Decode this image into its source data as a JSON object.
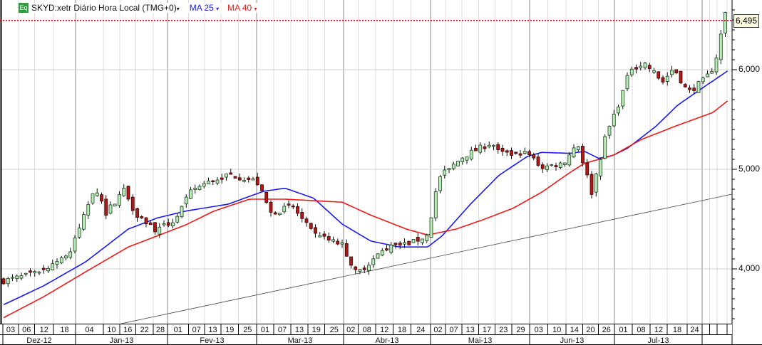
{
  "legend": {
    "badge": "Eq",
    "symbol": "SKYD:xetr Diário Hora Local (TMG+0)",
    "ma25": "MA 25",
    "ma40": "MA 40",
    "dropdown_glyph": "▾"
  },
  "last_price_label": "6,495",
  "colors": {
    "up_fill": "#b8ecb8",
    "down_fill": "#b01818",
    "ma25": "#1a1aee",
    "ma40": "#ee1a1a",
    "last_line": "#cc0000",
    "trend": "#444444"
  },
  "chart_data": {
    "type": "candlestick",
    "title": "SKYD:xetr Diário Hora Local (TMG+0)",
    "y_ticks": [
      {
        "value": 4000,
        "label": "4,000"
      },
      {
        "value": 5000,
        "label": "5,000"
      },
      {
        "value": 6000,
        "label": "6,000"
      }
    ],
    "ylim": [
      3450,
      6680
    ],
    "last_price": 6495,
    "candle_count": 163,
    "close_keypoints": [
      [
        0,
        3880
      ],
      [
        7,
        3950
      ],
      [
        15,
        4165
      ],
      [
        20.5,
        4840
      ],
      [
        23,
        4560
      ],
      [
        27,
        4800
      ],
      [
        29.6,
        4560
      ],
      [
        34.4,
        4380
      ],
      [
        38.4,
        4490
      ],
      [
        42.4,
        4800
      ],
      [
        50.4,
        4950
      ],
      [
        56.8,
        4880
      ],
      [
        60,
        4560
      ],
      [
        64.8,
        4630
      ],
      [
        69.6,
        4340
      ],
      [
        76,
        4240
      ],
      [
        79.2,
        3950
      ],
      [
        85.6,
        4200
      ],
      [
        92,
        4270
      ],
      [
        95.2,
        4340
      ],
      [
        97.6,
        4910
      ],
      [
        103.2,
        5130
      ],
      [
        109.6,
        5270
      ],
      [
        111.2,
        5160
      ],
      [
        117.6,
        5160
      ],
      [
        120.8,
        5020
      ],
      [
        125.6,
        5060
      ],
      [
        128.8,
        5270
      ],
      [
        132,
        4770
      ],
      [
        135.2,
        5340
      ],
      [
        138.4,
        5700
      ],
      [
        140.8,
        6020
      ],
      [
        144,
        6060
      ],
      [
        148,
        5880
      ],
      [
        150.4,
        6020
      ],
      [
        153.6,
        5770
      ],
      [
        157.6,
        5910
      ],
      [
        159.2,
        6020
      ],
      [
        160.5,
        6200
      ],
      [
        161.8,
        6590
      ],
      [
        162.6,
        6500
      ]
    ],
    "ma25_keypoints": [
      [
        0,
        3640
      ],
      [
        9,
        3830
      ],
      [
        18.4,
        4070
      ],
      [
        28,
        4400
      ],
      [
        34.4,
        4510
      ],
      [
        40.8,
        4580
      ],
      [
        50.4,
        4650
      ],
      [
        58.4,
        4780
      ],
      [
        63.2,
        4810
      ],
      [
        69.6,
        4710
      ],
      [
        76,
        4450
      ],
      [
        82.4,
        4280
      ],
      [
        88.8,
        4220
      ],
      [
        95.2,
        4220
      ],
      [
        98.4,
        4330
      ],
      [
        104.8,
        4650
      ],
      [
        111.2,
        4940
      ],
      [
        117.6,
        5130
      ],
      [
        120.8,
        5170
      ],
      [
        127.2,
        5160
      ],
      [
        130.4,
        5180
      ],
      [
        133.6,
        5110
      ],
      [
        136.8,
        5140
      ],
      [
        140,
        5210
      ],
      [
        146.4,
        5430
      ],
      [
        151.2,
        5640
      ],
      [
        156,
        5790
      ],
      [
        162.6,
        5990
      ]
    ],
    "ma40_keypoints": [
      [
        0,
        3510
      ],
      [
        9,
        3720
      ],
      [
        18.4,
        3970
      ],
      [
        28,
        4220
      ],
      [
        34.4,
        4330
      ],
      [
        40.8,
        4440
      ],
      [
        47.2,
        4580
      ],
      [
        55.2,
        4700
      ],
      [
        63.2,
        4700
      ],
      [
        76,
        4670
      ],
      [
        82.4,
        4540
      ],
      [
        90.4,
        4400
      ],
      [
        95.2,
        4340
      ],
      [
        101.6,
        4400
      ],
      [
        108,
        4500
      ],
      [
        114.4,
        4610
      ],
      [
        120.8,
        4770
      ],
      [
        127.2,
        4970
      ],
      [
        130.4,
        5060
      ],
      [
        136.8,
        5140
      ],
      [
        143.2,
        5300
      ],
      [
        151.2,
        5440
      ],
      [
        159.2,
        5570
      ],
      [
        162.6,
        5690
      ]
    ],
    "trendline": [
      [
        26.4,
        3450
      ],
      [
        163.5,
        4750
      ]
    ],
    "x_ticks": [
      "03",
      "06",
      "12",
      "18",
      "04",
      "10",
      "16",
      "22",
      "28",
      "01",
      "07",
      "13",
      "19",
      "25",
      "01",
      "07",
      "13",
      "19",
      "25",
      "02",
      "08",
      "12",
      "18",
      "24",
      "02",
      "07",
      "13",
      "17",
      "23",
      "29",
      "03",
      "10",
      "14",
      "20",
      "26",
      "01",
      "08",
      "12",
      "18",
      "24",
      "",
      "",
      ""
    ],
    "months": [
      "Dez-12",
      "Jan-13",
      "Fev-13",
      "Mar-13",
      "Abr-13",
      "Mai-13",
      "Jun-13",
      "Jul-13",
      ""
    ]
  }
}
